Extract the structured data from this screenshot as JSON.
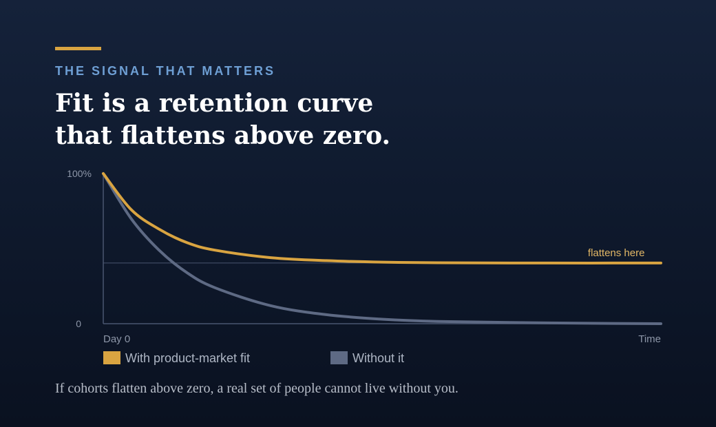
{
  "eyebrow": "THE SIGNAL THAT MATTERS",
  "headline": {
    "line1": "Fit is a retention curve",
    "line2": "that flattens above zero."
  },
  "caption": "If cohorts flatten above zero, a real set of people cannot live without you.",
  "colors": {
    "accent": "#d9a441",
    "fit_series": "#d9a441",
    "no_fit_series": "#5e6a84",
    "eyebrow": "#6e9fd4"
  },
  "chart_data": {
    "type": "line",
    "xlabel": "",
    "ylabel": "",
    "x_tick_labels": {
      "start": "Day 0",
      "end": "Time"
    },
    "y_tick_labels": [
      {
        "value": 100,
        "label": "100%"
      },
      {
        "value": 0,
        "label": "0"
      }
    ],
    "ylim": [
      0,
      100
    ],
    "xlim": [
      0,
      1
    ],
    "grid": false,
    "legend_position": "bottom-left",
    "reference_line": {
      "y": 40.4
    },
    "annotation": {
      "text": "flattens here",
      "x": 0.92,
      "y": 40.4
    },
    "series": [
      {
        "name": "With product-market fit",
        "color": "#d9a441",
        "x": [
          0,
          0.05,
          0.1,
          0.15,
          0.2,
          0.3,
          0.4,
          0.5,
          0.6,
          0.8,
          1.0
        ],
        "values": [
          100,
          76,
          63,
          54,
          49,
          44,
          42,
          41,
          40.6,
          40.4,
          40.4
        ]
      },
      {
        "name": "Without it",
        "color": "#5e6a84",
        "x": [
          0,
          0.05,
          0.1,
          0.15,
          0.2,
          0.3,
          0.4,
          0.5,
          0.6,
          0.8,
          1.0
        ],
        "values": [
          100,
          70,
          49,
          34,
          24,
          12,
          6,
          3,
          1.5,
          0.5,
          0
        ]
      }
    ]
  }
}
